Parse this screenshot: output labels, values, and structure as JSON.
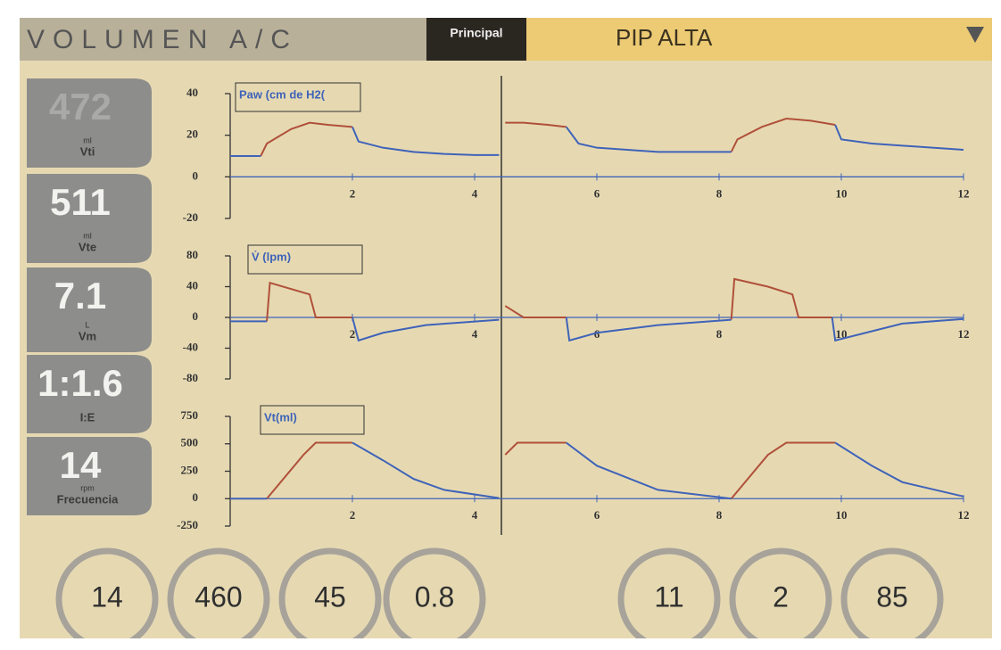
{
  "header": {
    "mode": "VOLUMEN A/C",
    "tab": "Principal",
    "alarm": "PIP ALTA"
  },
  "readouts": [
    {
      "value": "472",
      "unit": "ml",
      "label": "Vti"
    },
    {
      "value": "511",
      "unit": "ml",
      "label": "Vte"
    },
    {
      "value": "7.1",
      "unit": "L",
      "label": "Vm"
    },
    {
      "value": "1:1.6",
      "label": "I:E"
    },
    {
      "value": "14",
      "unit": "rpm",
      "label": "Frecuencia"
    }
  ],
  "charts": [
    {
      "type": "line",
      "title": "Paw (cm de H2(",
      "xlim": [
        0,
        12
      ],
      "xticks": [
        2,
        4,
        6,
        8,
        10,
        12
      ],
      "ylim": [
        -20,
        40
      ],
      "yticks": [
        -20,
        0,
        20,
        40
      ],
      "x": [
        0,
        0.5,
        0.6,
        1.0,
        1.3,
        1.6,
        2.0,
        2.1,
        2.5,
        3,
        3.5,
        4,
        4.4,
        4.45,
        4.5,
        4.8,
        5.2,
        5.5,
        5.7,
        6,
        7,
        8.2,
        8.3,
        8.7,
        9.1,
        9.5,
        9.9,
        10,
        10.5,
        11,
        12
      ],
      "series": [
        {
          "color": "#b0503a",
          "values": [
            null,
            10,
            16,
            23,
            26,
            25,
            24,
            null,
            null,
            null,
            null,
            null,
            null,
            null,
            26,
            26,
            25,
            24,
            null,
            null,
            null,
            12,
            18,
            24,
            28,
            27,
            25,
            null,
            null,
            null,
            null
          ]
        },
        {
          "color": "#3f63b8",
          "values": [
            10,
            10,
            null,
            null,
            null,
            null,
            24,
            17,
            14,
            12,
            11,
            10.5,
            10.5,
            null,
            null,
            null,
            null,
            24,
            16,
            14,
            12,
            12,
            null,
            null,
            null,
            null,
            25,
            18,
            16,
            15,
            13
          ]
        }
      ]
    },
    {
      "type": "line",
      "title": "V̇ (lpm)",
      "xlim": [
        0,
        12
      ],
      "xticks": [
        2,
        4,
        6,
        8,
        10,
        12
      ],
      "ylim": [
        -80,
        80
      ],
      "yticks": [
        -80,
        -40,
        0,
        40,
        80
      ],
      "x": [
        0,
        0.6,
        0.65,
        1.3,
        1.4,
        2.0,
        2.1,
        2.5,
        3.2,
        4.4,
        4.45,
        4.5,
        4.8,
        5.5,
        5.55,
        6,
        7,
        8.2,
        8.25,
        8.8,
        9.2,
        9.3,
        9.85,
        9.9,
        10.5,
        11,
        12
      ],
      "series": [
        {
          "color": "#b0503a",
          "values": [
            null,
            -5,
            45,
            30,
            0,
            0,
            null,
            null,
            null,
            null,
            null,
            15,
            0,
            0,
            null,
            null,
            null,
            -3,
            50,
            40,
            30,
            0,
            0,
            null,
            null,
            null,
            null
          ]
        },
        {
          "color": "#3f63b8",
          "values": [
            -5,
            -5,
            null,
            null,
            null,
            0,
            -30,
            -20,
            -10,
            -3,
            null,
            null,
            null,
            0,
            -30,
            -20,
            -10,
            -3,
            null,
            null,
            null,
            null,
            0,
            -30,
            -18,
            -8,
            -2
          ]
        }
      ]
    },
    {
      "type": "line",
      "title": "Vt(ml)",
      "xlim": [
        0,
        12
      ],
      "xticks": [
        2,
        4,
        6,
        8,
        10,
        12
      ],
      "ylim": [
        -250,
        750
      ],
      "yticks": [
        -250,
        0,
        250,
        500,
        750
      ],
      "x": [
        0,
        0.6,
        1.2,
        1.4,
        2.0,
        2.5,
        3,
        3.5,
        4.4,
        4.45,
        4.5,
        4.7,
        5.5,
        6,
        7,
        8.2,
        8.8,
        9.1,
        9.9,
        10.5,
        11,
        12
      ],
      "series": [
        {
          "color": "#b0503a",
          "values": [
            null,
            0,
            400,
            510,
            510,
            null,
            null,
            null,
            null,
            null,
            400,
            510,
            510,
            null,
            null,
            0,
            400,
            510,
            510,
            null,
            null,
            null
          ]
        },
        {
          "color": "#3f63b8",
          "values": [
            0,
            0,
            null,
            null,
            510,
            350,
            180,
            80,
            5,
            null,
            null,
            null,
            510,
            300,
            80,
            0,
            null,
            null,
            510,
            300,
            150,
            20
          ]
        }
      ]
    }
  ],
  "knobs": [
    "14",
    "460",
    "45",
    "0.8",
    "11",
    "2",
    "85"
  ]
}
